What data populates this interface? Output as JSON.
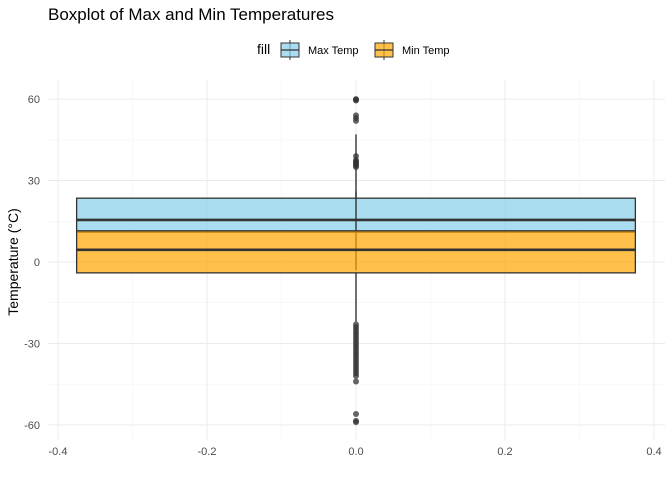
{
  "chart_data": {
    "type": "boxplot",
    "title": "Boxplot of Max and Min Temperatures",
    "xlabel": "",
    "ylabel": "Temperature (°C)",
    "legend": {
      "title": "fill",
      "position": "top",
      "entries": [
        {
          "name": "Max Temp",
          "color": "#87CEEB"
        },
        {
          "name": "Min Temp",
          "color": "#FFA500"
        }
      ]
    },
    "x_ticks": [
      "-0.4",
      "-0.2",
      "0.0",
      "0.2",
      "0.4"
    ],
    "y_ticks": [
      "-60",
      "-30",
      "0",
      "30",
      "60"
    ],
    "xlim": [
      -0.41,
      0.41
    ],
    "ylim": [
      -62,
      64
    ],
    "grid": true,
    "series": [
      {
        "name": "Max Temp",
        "color": "#87CEEB",
        "x_range": [
          -0.375,
          0.375
        ],
        "whisker_low": -3,
        "q1": 11,
        "median": 15.5,
        "q3": 23.5,
        "whisker_high": 47,
        "outliers": [
          60,
          59.8,
          59.5,
          54,
          53,
          52,
          39,
          37.5,
          37,
          36.5,
          36,
          35.5,
          35
        ]
      },
      {
        "name": "Min Temp",
        "color": "#FFA500",
        "x_range": [
          -0.375,
          0.375
        ],
        "whisker_low": -22,
        "q1": -4,
        "median": 4.5,
        "q3": 11.5,
        "whisker_high": 26,
        "outliers": [
          -23,
          -24,
          -25,
          -26,
          -27,
          -28,
          -29,
          -30,
          -31,
          -32,
          -33,
          -34,
          -35,
          -36,
          -37,
          -38,
          -39,
          -40,
          -41,
          -42,
          -44,
          -56,
          -58.5,
          -59
        ]
      }
    ]
  }
}
